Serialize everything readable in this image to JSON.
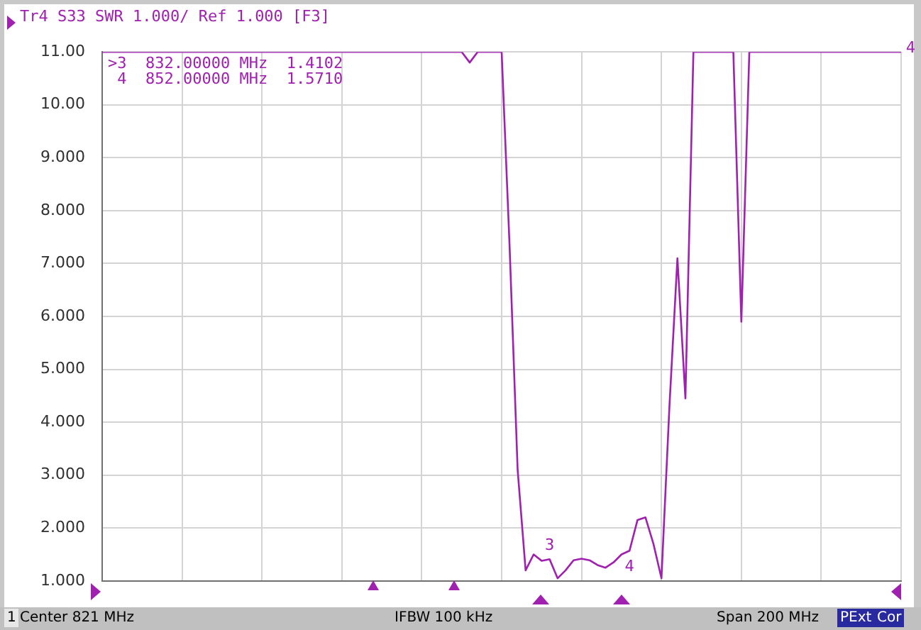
{
  "chart_data": {
    "type": "line",
    "title": "Tr4 S33 SWR 1.000/ Ref 1.000 [F3]",
    "categories": [
      null,
      null,
      null,
      null,
      null,
      null,
      null,
      null,
      null,
      null,
      null,
      null,
      null,
      null,
      null,
      null,
      null,
      null,
      null,
      null,
      null,
      null,
      null,
      null,
      null,
      null,
      null,
      null,
      null,
      null,
      null,
      null,
      null,
      null,
      null,
      null,
      null,
      null,
      null,
      null,
      null,
      null,
      null,
      null,
      null,
      null,
      null,
      null,
      null,
      null,
      null,
      null,
      null,
      null,
      null,
      null,
      null,
      null,
      null,
      null,
      null,
      null,
      null,
      null,
      null,
      null,
      null,
      null,
      null,
      null,
      null,
      null,
      null,
      null,
      null,
      null,
      null,
      null,
      null,
      null,
      null,
      null,
      null,
      null,
      null,
      null,
      null,
      null,
      null,
      null,
      null,
      null,
      null,
      null,
      null,
      null,
      null,
      null,
      null,
      null,
      null
    ],
    "series": [
      {
        "color": "#a020b0",
        "values": [
          11,
          11,
          11,
          11,
          11,
          11,
          11,
          11,
          11,
          11,
          11,
          11,
          11,
          11,
          11,
          11,
          11,
          11,
          11,
          11,
          11,
          11,
          11,
          11,
          11,
          11,
          11,
          11,
          11,
          11,
          11,
          11,
          11,
          11,
          11,
          11,
          11,
          11,
          11,
          11,
          11,
          11,
          11,
          11,
          11,
          11,
          10.8,
          11,
          11,
          11,
          11,
          7.3,
          3.1,
          1.2,
          1.5,
          1.38,
          1.41,
          1.05,
          1.2,
          1.39,
          1.42,
          1.39,
          1.3,
          1.25,
          1.35,
          1.5,
          1.57,
          2.15,
          2.2,
          1.7,
          1.05,
          4.3,
          7.1,
          4.45,
          11,
          11,
          11,
          11,
          11,
          11,
          5.9,
          11,
          11,
          11,
          11,
          11,
          11,
          11,
          11,
          11,
          11,
          11,
          11,
          11,
          11,
          11,
          11,
          11,
          11,
          11,
          11
        ]
      }
    ],
    "ylim": [
      1,
      11
    ],
    "yticks": [
      {
        "value": 1,
        "label": "1.000"
      },
      {
        "value": 2,
        "label": "2.000"
      },
      {
        "value": 3,
        "label": "3.000"
      },
      {
        "value": 4,
        "label": "4.000"
      },
      {
        "value": 5,
        "label": "5.000"
      },
      {
        "value": 6,
        "label": "6.000"
      },
      {
        "value": 7,
        "label": "7.000"
      },
      {
        "value": 8,
        "label": "8.000"
      },
      {
        "value": 9,
        "label": "9.000"
      },
      {
        "value": 10,
        "label": "10.00"
      },
      {
        "value": 11,
        "label": "11.00"
      }
    ],
    "tick_labels": "y",
    "grid": true,
    "legend": false,
    "marker": "none",
    "line_style": "solid",
    "annotations": [
      ">3  832.00000 MHz  1.4102",
      " 4  852.00000 MHz  1.5710",
      {
        "text": "3",
        "y": 1.41
      },
      {
        "text": "4",
        "y": 1.57
      },
      "4",
      "1",
      "Center 821 MHz",
      "IFBW 100 kHz",
      "Span 200 MHz",
      "PExt",
      "Cor"
    ]
  }
}
